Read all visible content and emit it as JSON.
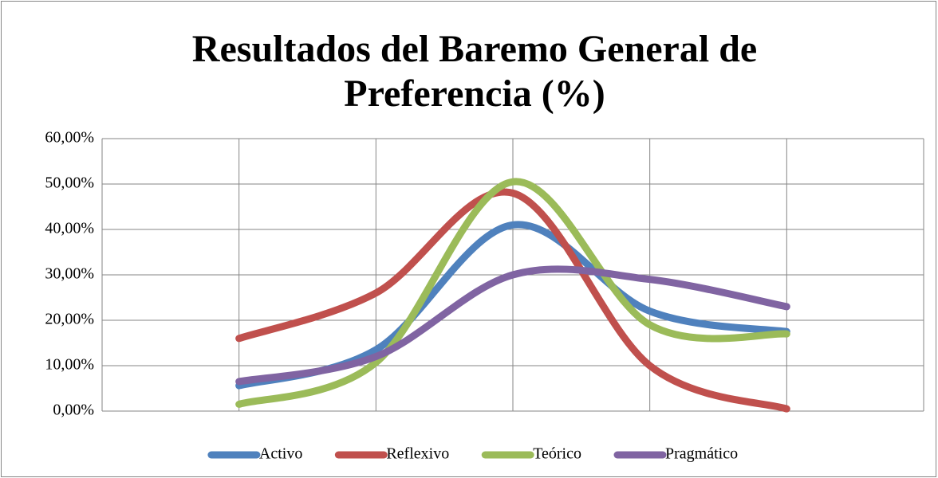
{
  "chart_data": {
    "type": "line",
    "title": "Resultados del Baremo General de Preferencia (%)",
    "categories": [
      null,
      null,
      null,
      null,
      null
    ],
    "series": [
      {
        "name": "Activo",
        "color": "#4f81bd",
        "values": [
          5.6,
          13.5,
          41,
          22,
          17.5
        ]
      },
      {
        "name": "Reflexivo",
        "color": "#c0504d",
        "values": [
          16,
          26,
          48,
          10,
          0.5
        ]
      },
      {
        "name": "Teórico",
        "color": "#9bbb59",
        "values": [
          1.5,
          10.7,
          50.5,
          19,
          17
        ]
      },
      {
        "name": "Pragmático",
        "color": "#8064a2",
        "values": [
          6.5,
          12,
          30,
          29,
          23
        ]
      }
    ],
    "ylim": [
      0,
      60
    ],
    "yticks": [
      {
        "value": 0,
        "label": "0,00%"
      },
      {
        "value": 10,
        "label": "10,00%"
      },
      {
        "value": 20,
        "label": "20,00%"
      },
      {
        "value": 30,
        "label": "30,00%"
      },
      {
        "value": 40,
        "label": "40,00%"
      },
      {
        "value": 50,
        "label": "50,00%"
      },
      {
        "value": 60,
        "label": "60,00%"
      }
    ],
    "grid": true,
    "smooth": true,
    "legend": "bottom"
  }
}
